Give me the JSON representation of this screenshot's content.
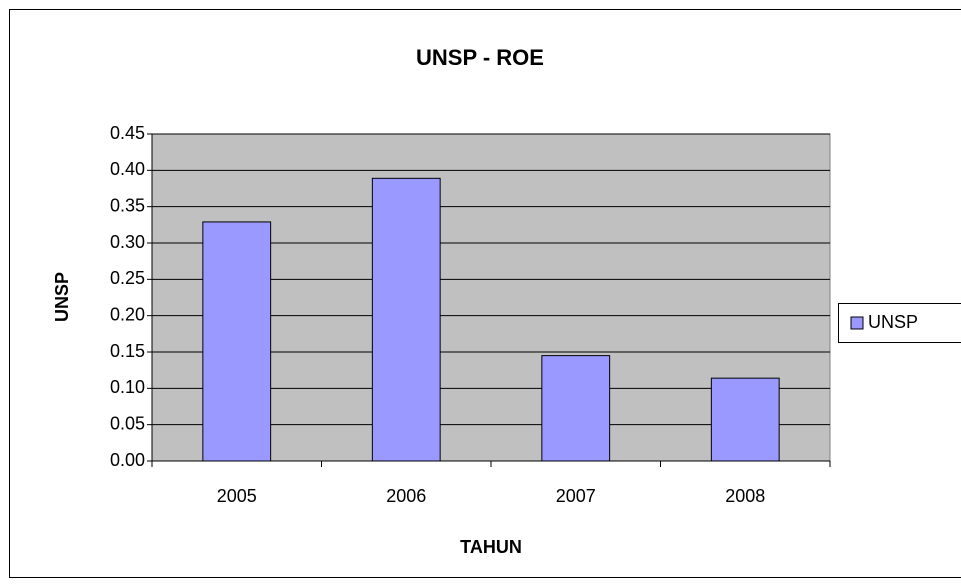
{
  "chart_data": {
    "type": "bar",
    "title": "UNSP - ROE",
    "x_label": "TAHUN",
    "y_label": "UNSP",
    "categories": [
      "2005",
      "2006",
      "2007",
      "2008"
    ],
    "series": [
      {
        "name": "UNSP",
        "color": "#9999ff",
        "values": [
          0.329,
          0.389,
          0.145,
          0.114
        ]
      }
    ],
    "ylim": [
      0,
      0.45
    ],
    "yticks": [
      {
        "value": 0,
        "label": "0.00"
      },
      0.05,
      {
        "value": 0.1,
        "label": "0.10"
      },
      0.15,
      {
        "value": 0.2,
        "label": "0.20"
      },
      0.25,
      {
        "value": 0.3,
        "label": "0.30"
      },
      0.35,
      {
        "value": 0.4,
        "label": "0.40"
      },
      0.45
    ],
    "grid": true,
    "legend": "right"
  }
}
